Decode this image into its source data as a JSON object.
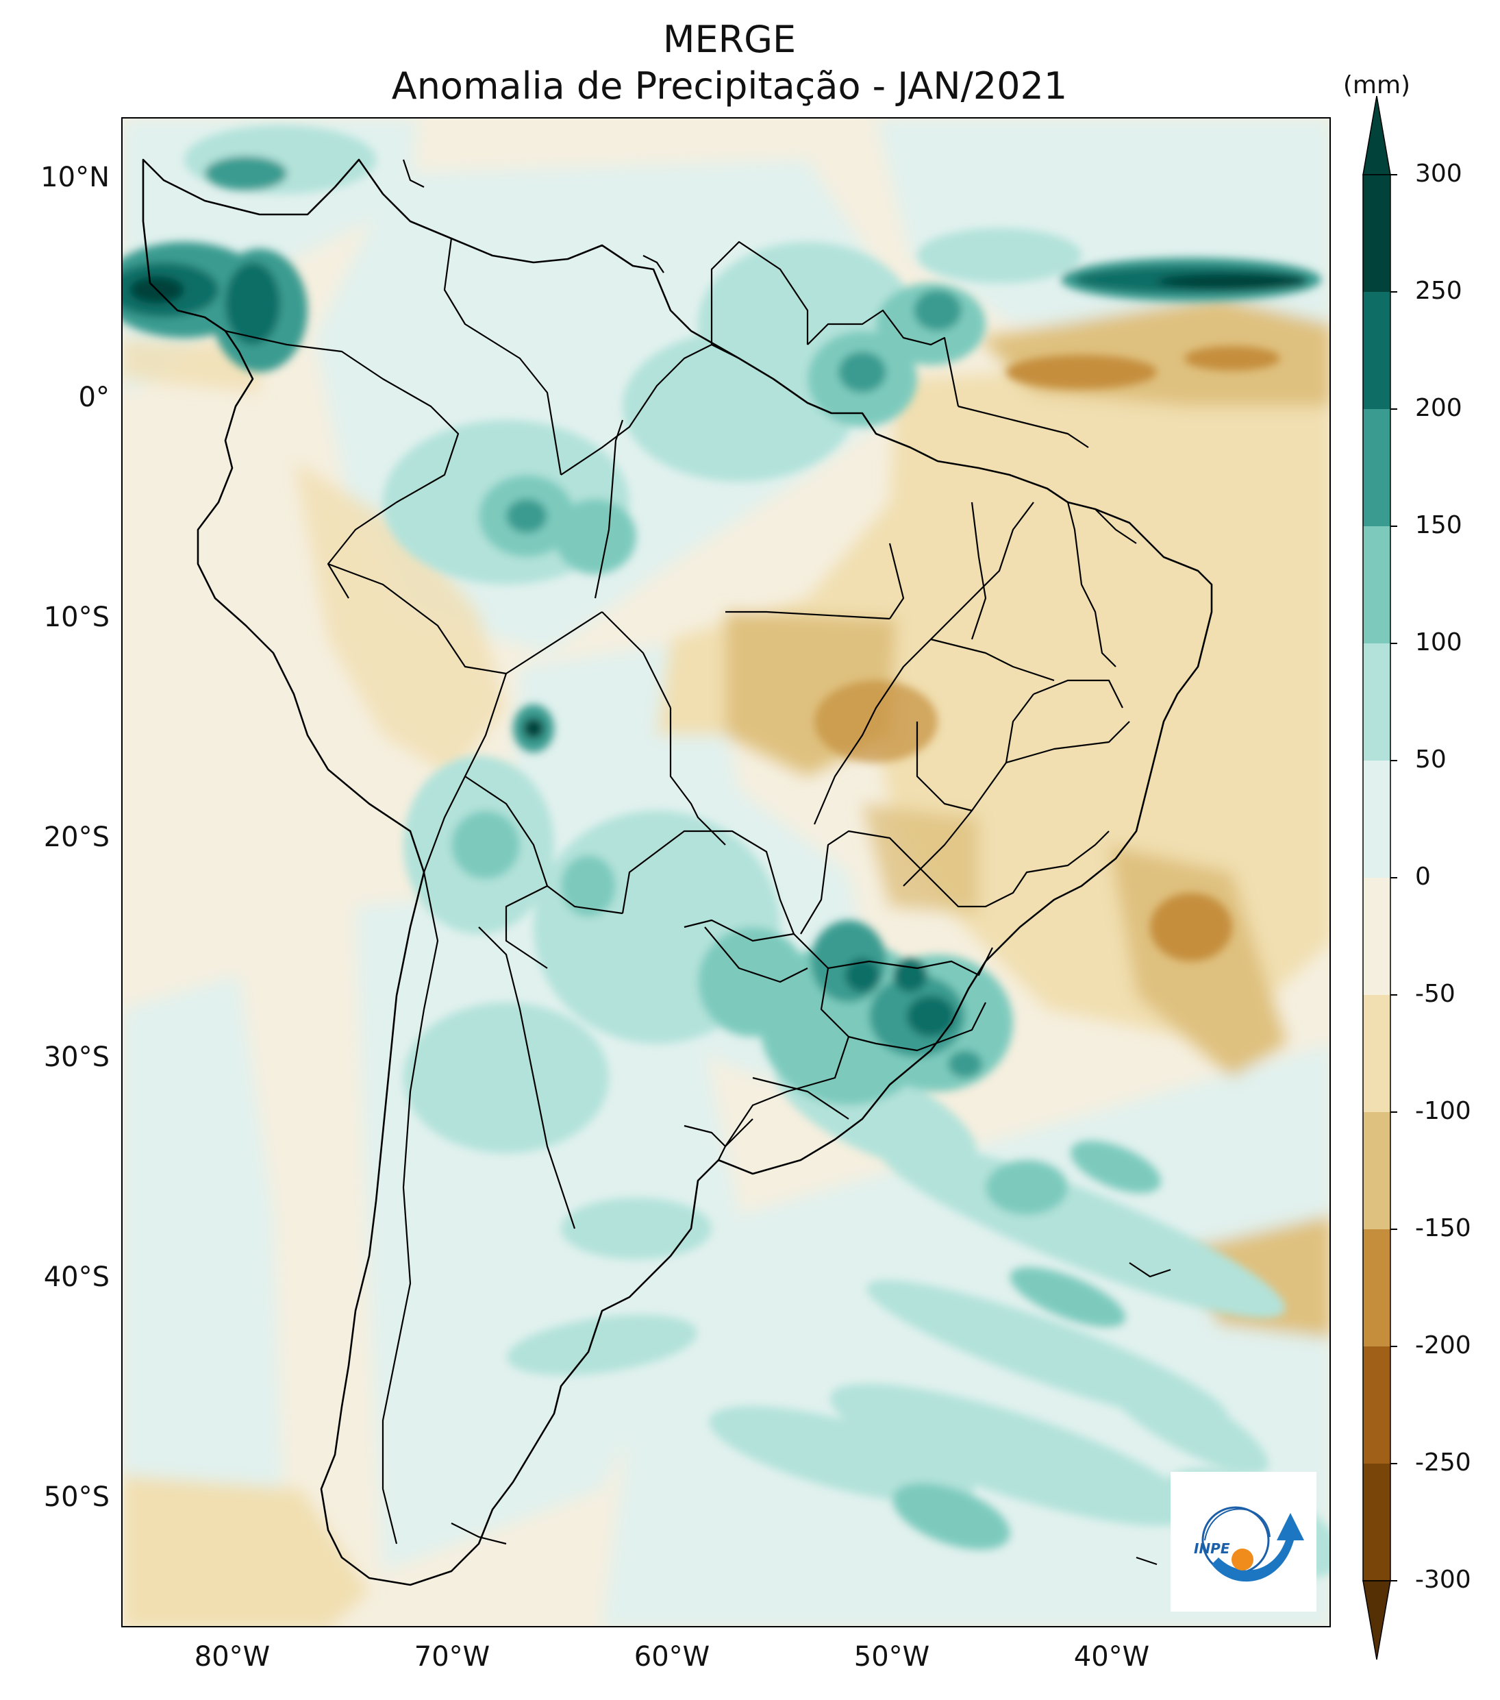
{
  "title": {
    "line1": "MERGE",
    "line2": "Anomalia de Precipitação - JAN/2021"
  },
  "map": {
    "lon_range": [
      -85,
      -30
    ],
    "lat_range": [
      -56,
      12.5
    ],
    "lat_ticks": [
      "10°N",
      "0°",
      "10°S",
      "20°S",
      "30°S",
      "40°S",
      "50°S"
    ],
    "lon_ticks": [
      "80°W",
      "70°W",
      "60°W",
      "50°W",
      "40°W"
    ],
    "background_color": "#f5efdf",
    "land_outline_color": "#000000",
    "wet_anomaly_regions": [
      "Northern Colombia and Panama (up to 300 mm)",
      "Guianas and northern Amazon",
      "Western Amazon",
      "Bolivia / Mato Grosso do Sul",
      "Paraguay and southern Brazil (up to 250 mm)",
      "Equatorial Atlantic band near 5°N (up to 300 mm)",
      "South Atlantic bands"
    ],
    "dry_anomaly_regions": [
      "Central and southeastern Brazil",
      "Equatorial Atlantic off northern Brazil (down to -200 mm)",
      "South Atlantic off southeastern Brazil (down to -200 mm)",
      "Southern Patagonia"
    ]
  },
  "colorbar": {
    "unit": "(mm)",
    "levels": [
      "300",
      "250",
      "200",
      "150",
      "100",
      "50",
      "0",
      "-50",
      "-100",
      "-150",
      "-200",
      "-250",
      "-300"
    ],
    "colors": [
      "#01433a",
      "#0e6e66",
      "#3a9b90",
      "#7dcabd",
      "#b2e2da",
      "#e1f1ee",
      "#f5efdf",
      "#f1dfb1",
      "#dfc17f",
      "#c58e3d",
      "#a06018",
      "#7a4509",
      "#553005"
    ],
    "extend": "both"
  },
  "logo": {
    "text": "INPE"
  }
}
